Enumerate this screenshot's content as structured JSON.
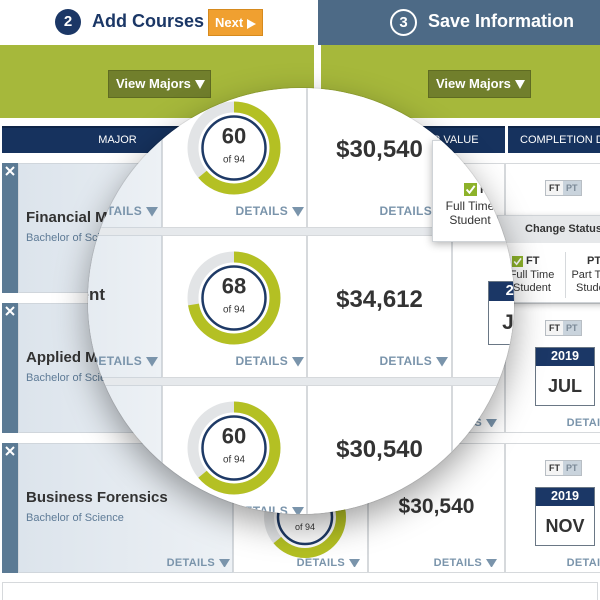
{
  "steps": [
    {
      "number": "2",
      "label": "Add Courses"
    },
    {
      "number": "3",
      "label": "Save Information"
    }
  ],
  "next_button": "Next",
  "view_majors_button": "View Majors",
  "table_headers": [
    "MAJOR",
    "CAREER VALUE",
    "COMPLETION DA"
  ],
  "details_label": "DETAILS",
  "status_toggle": [
    "FT",
    "PT"
  ],
  "ring_color": "#b4c023",
  "rows": [
    {
      "major": "Financial Management",
      "degree": "Bachelor of Science",
      "ring": {
        "value": 60,
        "max": 94,
        "max_label": "of 94"
      },
      "career_value": "$30,540"
    },
    {
      "major": "Applied Management",
      "degree": "Bachelor of Science",
      "ring": {
        "value": 68,
        "max": 94,
        "max_label": "of 94"
      },
      "career_value": "$34,612",
      "date": {
        "year": "2019",
        "month": "JUL"
      }
    },
    {
      "major": "Business Forensics",
      "degree": "Bachelor of Science",
      "ring": {
        "value": 60,
        "max": 94,
        "max_label": "of 94"
      },
      "career_value": "$30,540",
      "date": {
        "year": "2019",
        "month": "NOV"
      }
    }
  ],
  "change_status": {
    "title": "Change Status",
    "options": [
      {
        "code": "FT",
        "label": "Full Time Student"
      },
      {
        "code": "PT",
        "label": "Part Time Student"
      }
    ]
  }
}
